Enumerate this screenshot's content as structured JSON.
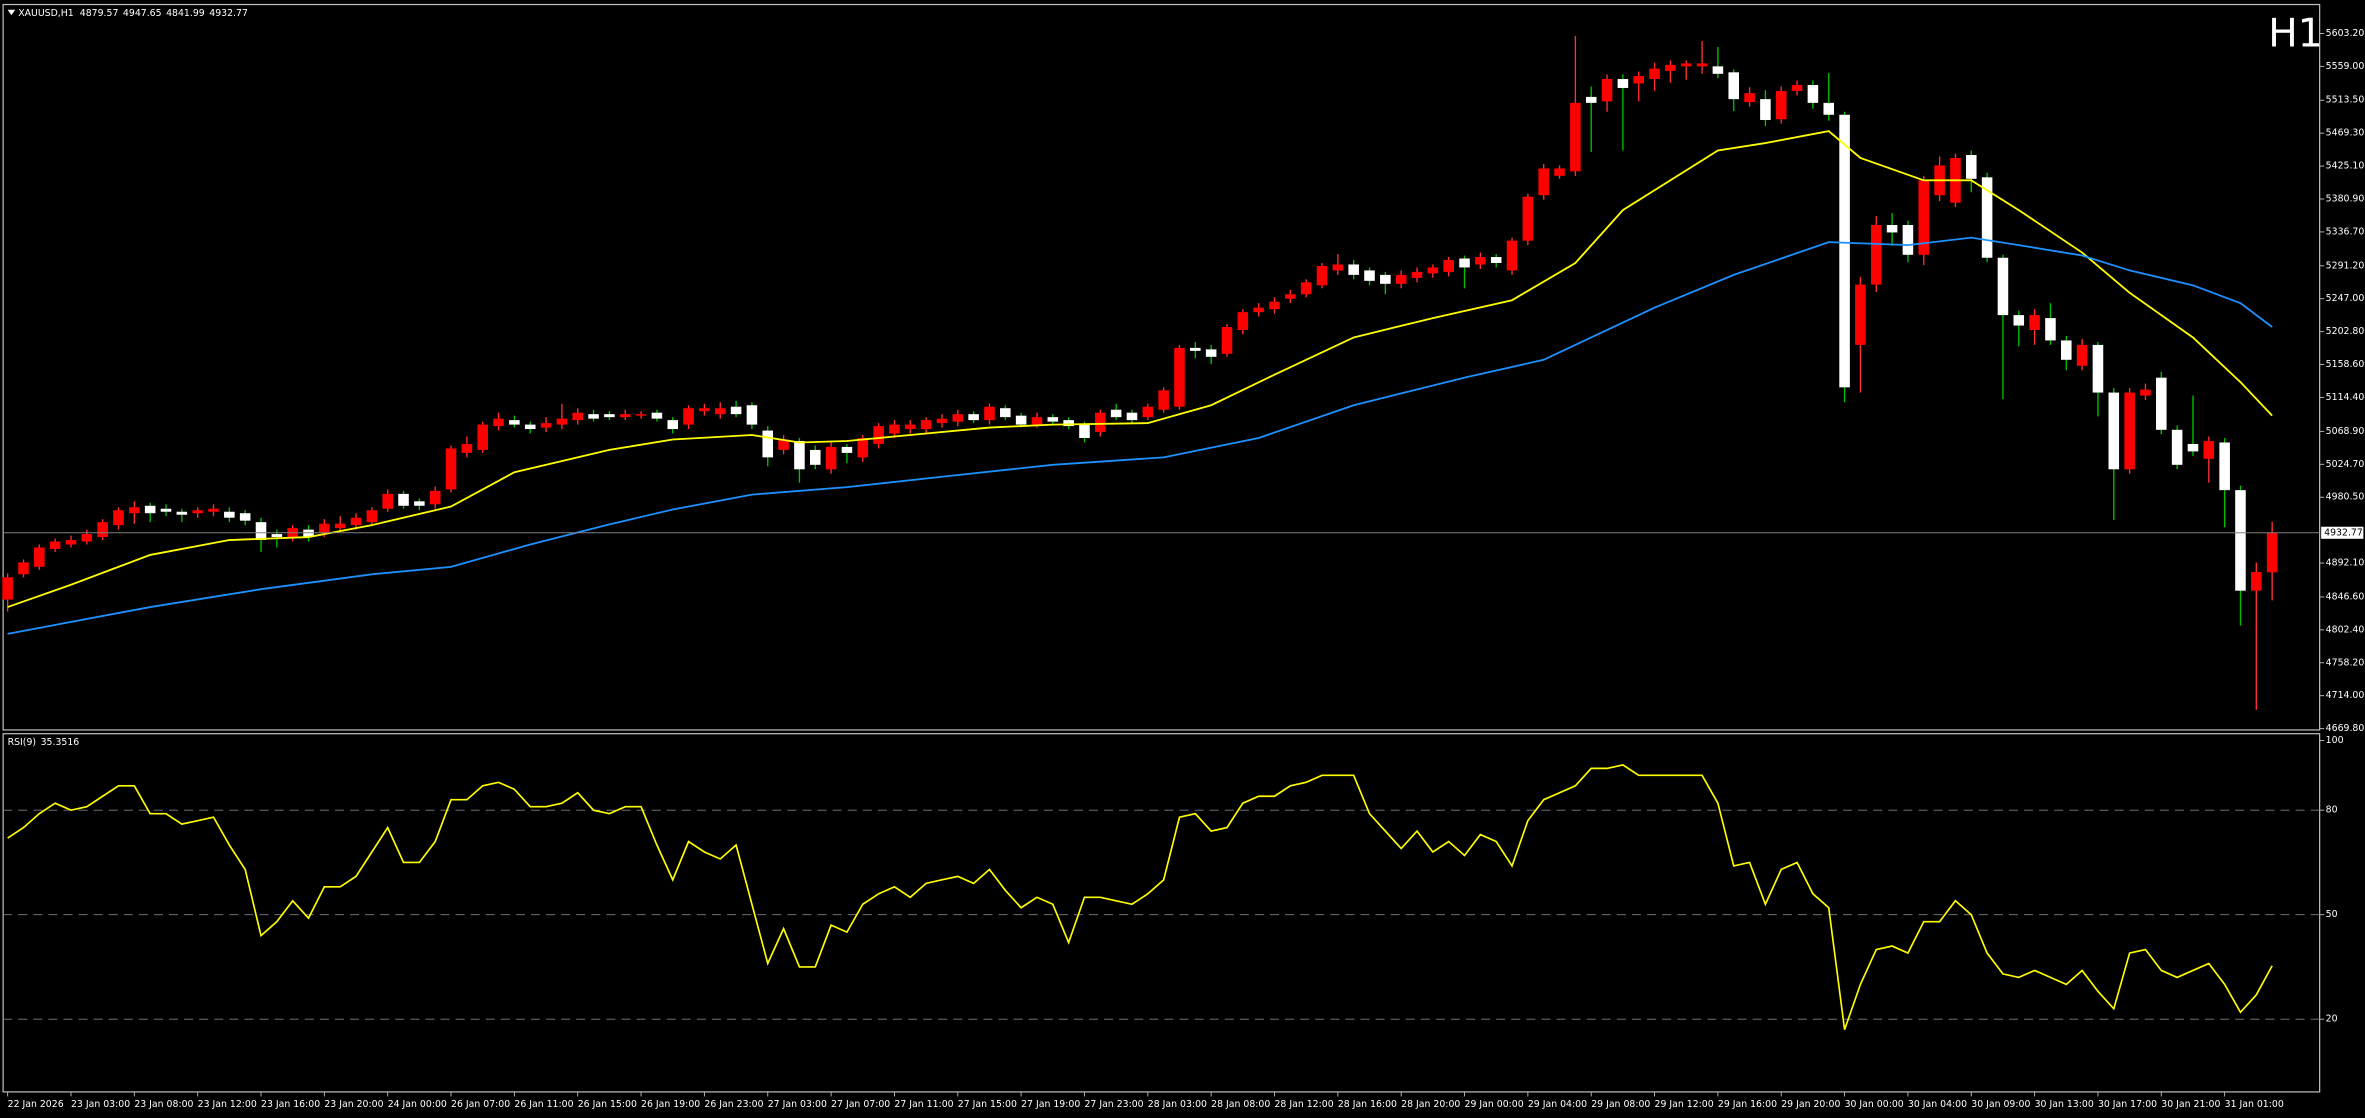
{
  "chart_data": [
    {
      "type": "candlestick",
      "title": "XAUUSD,H1",
      "timeframe": "H1",
      "timeframe_color": "#ff0000",
      "up_color": "#ff0000",
      "down_color": "#ffffff",
      "up_wick_color": "#ff3030",
      "down_wick_color": "#00c000",
      "price_line_color": "#808080",
      "open": [
        4843,
        4877,
        4887,
        4911,
        4917,
        4921,
        4927,
        4943,
        4959,
        4969,
        4965,
        4961,
        4959,
        4961,
        4961,
        4959,
        4947,
        4931,
        4927,
        4937,
        4933,
        4939,
        4943,
        4947,
        4965,
        4985,
        4975,
        4971,
        4991,
        5040,
        5044,
        5076,
        5084,
        5078,
        5074,
        5078,
        5084,
        5092,
        5092,
        5088,
        5090,
        5094,
        5084,
        5078,
        5096,
        5092,
        5102,
        5104,
        5070,
        5044,
        5056,
        5044,
        5018,
        5048,
        5034,
        5052,
        5066,
        5072,
        5072,
        5080,
        5082,
        5092,
        5084,
        5100,
        5090,
        5078,
        5088,
        5084,
        5078,
        5068,
        5098,
        5094,
        5088,
        5098,
        5102,
        5181,
        5179,
        5173,
        5205,
        5229,
        5233,
        5247,
        5253,
        5265,
        5285,
        5293,
        5285,
        5279,
        5267,
        5275,
        5281,
        5283,
        5301,
        5293,
        5303,
        5285,
        5325,
        5386,
        5412,
        5418,
        5518,
        5512,
        5542,
        5536,
        5542,
        5553,
        5559,
        5559,
        5559,
        5551,
        5511,
        5515,
        5488,
        5526,
        5534,
        5510,
        5494,
        5185,
        5266,
        5346,
        5346,
        5306,
        5386,
        5376,
        5440,
        5410,
        5302,
        5225,
        5205,
        5221,
        5191,
        5157,
        5185,
        5121,
        5018,
        5117,
        5141,
        5071,
        5052,
        5032,
        5054,
        4990,
        4855,
        4879.57
      ],
      "high": [
        4878,
        4897,
        4917,
        4925,
        4929,
        4937,
        4951,
        4967,
        4975,
        4973,
        4971,
        4965,
        4967,
        4971,
        4967,
        4963,
        4953,
        4937,
        4943,
        4943,
        4951,
        4955,
        4959,
        4967,
        4991,
        4989,
        4979,
        4995,
        5050,
        5062,
        5082,
        5094,
        5090,
        5082,
        5088,
        5106,
        5100,
        5098,
        5096,
        5098,
        5096,
        5098,
        5088,
        5104,
        5106,
        5108,
        5110,
        5108,
        5076,
        5064,
        5060,
        5050,
        5054,
        5052,
        5064,
        5080,
        5084,
        5084,
        5088,
        5092,
        5098,
        5096,
        5106,
        5104,
        5094,
        5094,
        5092,
        5088,
        5082,
        5098,
        5106,
        5098,
        5106,
        5128,
        5185,
        5189,
        5185,
        5213,
        5233,
        5241,
        5249,
        5259,
        5273,
        5295,
        5307,
        5299,
        5289,
        5283,
        5285,
        5289,
        5293,
        5303,
        5305,
        5309,
        5307,
        5329,
        5388,
        5428,
        5426,
        5600,
        5532,
        5548,
        5548,
        5552,
        5564,
        5567,
        5567,
        5593,
        5585,
        5555,
        5531,
        5527,
        5532,
        5540,
        5540,
        5550,
        5498,
        5276,
        5358,
        5362,
        5352,
        5412,
        5438,
        5442,
        5446,
        5416,
        5306,
        5231,
        5233,
        5241,
        5197,
        5193,
        5189,
        5127,
        5127,
        5133,
        5149,
        5077,
        5117,
        5062,
        5060,
        4996,
        4893,
        4947.65
      ],
      "low": [
        4827,
        4873,
        4883,
        4907,
        4913,
        4917,
        4923,
        4937,
        4945,
        4947,
        4955,
        4947,
        4953,
        4955,
        4947,
        4943,
        4907,
        4913,
        4921,
        4921,
        4927,
        4935,
        4937,
        4943,
        4961,
        4965,
        4963,
        4965,
        4987,
        5034,
        5040,
        5070,
        5074,
        5066,
        5068,
        5072,
        5078,
        5082,
        5084,
        5084,
        5086,
        5082,
        5066,
        5072,
        5090,
        5086,
        5088,
        5072,
        5022,
        5038,
        5000,
        5018,
        5012,
        5026,
        5028,
        5046,
        5060,
        5066,
        5066,
        5074,
        5076,
        5080,
        5078,
        5084,
        5074,
        5074,
        5078,
        5072,
        5054,
        5062,
        5084,
        5080,
        5084,
        5094,
        5098,
        5167,
        5159,
        5169,
        5199,
        5223,
        5227,
        5241,
        5249,
        5261,
        5279,
        5273,
        5265,
        5253,
        5261,
        5269,
        5275,
        5277,
        5261,
        5287,
        5289,
        5279,
        5319,
        5380,
        5408,
        5412,
        5444,
        5498,
        5446,
        5512,
        5526,
        5537,
        5541,
        5549,
        5543,
        5499,
        5505,
        5479,
        5482,
        5520,
        5502,
        5486,
        5108,
        5121,
        5256,
        5318,
        5296,
        5292,
        5378,
        5370,
        5390,
        5296,
        5112,
        5183,
        5185,
        5185,
        5151,
        5151,
        5089,
        4950,
        5012,
        5111,
        5065,
        5018,
        5036,
        5000,
        4940,
        4808,
        4695,
        4841.99
      ],
      "close": [
        4873,
        4893,
        4913,
        4921,
        4923,
        4931,
        4947,
        4963,
        4967,
        4959,
        4961,
        4957,
        4963,
        4965,
        4953,
        4949,
        4923,
        4927,
        4939,
        4927,
        4945,
        4945,
        4953,
        4963,
        4985,
        4969,
        4969,
        4989,
        5046,
        5052,
        5078,
        5086,
        5078,
        5072,
        5080,
        5086,
        5094,
        5086,
        5088,
        5092,
        5092,
        5086,
        5072,
        5100,
        5100,
        5100,
        5092,
        5078,
        5034,
        5058,
        5018,
        5024,
        5048,
        5040,
        5060,
        5076,
        5078,
        5078,
        5084,
        5086,
        5092,
        5084,
        5102,
        5088,
        5078,
        5088,
        5082,
        5076,
        5060,
        5094,
        5088,
        5084,
        5102,
        5124,
        5181,
        5177,
        5169,
        5209,
        5229,
        5235,
        5243,
        5253,
        5269,
        5291,
        5293,
        5279,
        5271,
        5267,
        5279,
        5283,
        5289,
        5299,
        5289,
        5303,
        5295,
        5325,
        5384,
        5422,
        5422,
        5510,
        5510,
        5542,
        5530,
        5546,
        5556,
        5561,
        5563,
        5563,
        5549,
        5515,
        5523,
        5487,
        5526,
        5534,
        5510,
        5494,
        5128,
        5266,
        5346,
        5336,
        5306,
        5406,
        5426,
        5436,
        5408,
        5302,
        5225,
        5211,
        5225,
        5191,
        5165,
        5185,
        5121,
        5018,
        5121,
        5125,
        5071,
        5024,
        5042,
        5056,
        4990,
        4855,
        4880,
        4932.77
      ],
      "series": [
        {
          "color": "#ffff00",
          "x": [
            0,
            4,
            9,
            14,
            19,
            23,
            28,
            32,
            38,
            42,
            47,
            50,
            53,
            57,
            62,
            66,
            72,
            76,
            80,
            85,
            90,
            95,
            99,
            102,
            108,
            111,
            115,
            117,
            121,
            124,
            127,
            131,
            134,
            138,
            141,
            143
          ],
          "values": [
            4833,
            4863,
            4903,
            4923,
            4927,
            4943,
            4968,
            5014,
            5044,
            5058,
            5064,
            5054,
            5056,
            5064,
            5074,
            5078,
            5080,
            5104,
            5145,
            5195,
            5221,
            5245,
            5295,
            5366,
            5446,
            5456,
            5472,
            5436,
            5406,
            5406,
            5366,
            5309,
            5255,
            5195,
            5135,
            5090
          ]
        },
        {
          "color": "#1e90ff",
          "x": [
            0,
            9,
            16,
            23,
            28,
            33,
            38,
            42,
            47,
            53,
            59,
            66,
            73,
            79,
            85,
            92,
            97,
            100,
            104,
            109,
            115,
            120,
            124,
            127,
            131,
            134,
            138,
            141,
            143
          ],
          "values": [
            4797,
            4833,
            4857,
            4877,
            4887,
            4917,
            4944,
            4964,
            4984,
            4994,
            5008,
            5024,
            5034,
            5060,
            5104,
            5141,
            5165,
            5195,
            5235,
            5279,
            5323,
            5319,
            5329,
            5319,
            5305,
            5285,
            5265,
            5241,
            5209
          ]
        }
      ],
      "ylim": [
        4668,
        5640
      ],
      "yticks": [
        {
          "value": 5603.2,
          "label": "5603.20"
        },
        {
          "value": 5559,
          "label": "5559.00"
        },
        {
          "value": 5513.5,
          "label": "5513.50"
        },
        {
          "value": 5469.3,
          "label": "5469.30"
        },
        {
          "value": 5425.1,
          "label": "5425.10"
        },
        {
          "value": 5380.9,
          "label": "5380.90"
        },
        {
          "value": 5336.7,
          "label": "5336.70"
        },
        {
          "value": 5291.2,
          "label": "5291.20"
        },
        {
          "value": 5247,
          "label": "5247.00"
        },
        {
          "value": 5202.8,
          "label": "5202.80"
        },
        {
          "value": 5158.6,
          "label": "5158.60"
        },
        {
          "value": 5114.4,
          "label": "5114.40"
        },
        {
          "value": 5068.9,
          "label": "5068.90"
        },
        {
          "value": 5024.7,
          "label": "5024.70"
        },
        {
          "value": 4980.5,
          "label": "4980.50"
        },
        {
          "value": 4892.1,
          "label": "4892.10"
        },
        {
          "value": 4846.6,
          "label": "4846.60"
        },
        {
          "value": 4802.4,
          "label": "4802.40"
        },
        {
          "value": 4758.2,
          "label": "4758.20"
        },
        {
          "value": 4714,
          "label": "4714.00"
        },
        {
          "value": 4669.8,
          "label": "4669.80"
        }
      ]
    },
    {
      "type": "line",
      "title": "RSI(9)",
      "color": "#ffff00",
      "level_color": "#808080",
      "values": [
        72,
        75,
        79,
        82,
        80,
        81,
        84,
        87,
        87,
        79,
        79,
        76,
        77,
        78,
        70,
        63,
        44,
        48,
        54,
        49,
        58,
        58,
        61,
        68,
        75,
        65,
        65,
        71,
        83,
        83,
        87,
        88,
        86,
        81,
        81,
        82,
        85,
        80,
        79,
        81,
        81,
        70,
        60,
        71,
        68,
        66,
        70,
        53,
        36,
        46,
        35,
        35,
        47,
        45,
        53,
        56,
        58,
        55,
        59,
        60,
        61,
        59,
        63,
        57,
        52,
        55,
        53,
        42,
        55,
        55,
        54,
        53,
        56,
        60,
        78,
        79,
        74,
        75,
        82,
        84,
        84,
        87,
        88,
        90,
        90,
        90,
        79,
        74,
        69,
        74,
        68,
        71,
        67,
        73,
        71,
        64,
        77,
        83,
        85,
        87,
        92,
        92,
        93,
        90,
        90,
        90,
        90,
        90,
        82,
        64,
        65,
        53,
        63,
        65,
        56,
        52,
        17,
        30,
        40,
        41,
        39,
        48,
        48,
        54,
        50,
        39,
        33,
        32,
        34,
        32,
        30,
        34,
        28,
        23,
        39,
        40,
        34,
        32,
        34,
        36,
        30,
        22,
        27,
        35.3516
      ],
      "ylim": [
        0,
        100
      ],
      "yticks": [
        100,
        80,
        50,
        20
      ],
      "xticks": [
        {
          "value": 0,
          "label": "22 Jan 2026"
        },
        {
          "value": 4,
          "label": "23 Jan 03:00"
        },
        {
          "value": 8,
          "label": "23 Jan 08:00"
        },
        {
          "value": 12,
          "label": "23 Jan 12:00"
        },
        {
          "value": 16,
          "label": "23 Jan 16:00"
        },
        {
          "value": 20,
          "label": "23 Jan 20:00"
        },
        {
          "value": 24,
          "label": "24 Jan 00:00"
        },
        {
          "value": 28,
          "label": "26 Jan 07:00"
        },
        {
          "value": 32,
          "label": "26 Jan 11:00"
        },
        {
          "value": 36,
          "label": "26 Jan 15:00"
        },
        {
          "value": 40,
          "label": "26 Jan 19:00"
        },
        {
          "value": 44,
          "label": "26 Jan 23:00"
        },
        {
          "value": 48,
          "label": "27 Jan 03:00"
        },
        {
          "value": 52,
          "label": "27 Jan 07:00"
        },
        {
          "value": 56,
          "label": "27 Jan 11:00"
        },
        {
          "value": 60,
          "label": "27 Jan 15:00"
        },
        {
          "value": 64,
          "label": "27 Jan 19:00"
        },
        {
          "value": 68,
          "label": "27 Jan 23:00"
        },
        {
          "value": 72,
          "label": "28 Jan 03:00"
        },
        {
          "value": 76,
          "label": "28 Jan 08:00"
        },
        {
          "value": 80,
          "label": "28 Jan 12:00"
        },
        {
          "value": 84,
          "label": "28 Jan 16:00"
        },
        {
          "value": 88,
          "label": "28 Jan 20:00"
        },
        {
          "value": 92,
          "label": "29 Jan 00:00"
        },
        {
          "value": 96,
          "label": "29 Jan 04:00"
        },
        {
          "value": 100,
          "label": "29 Jan 08:00"
        },
        {
          "value": 104,
          "label": "29 Jan 12:00"
        },
        {
          "value": 108,
          "label": "29 Jan 16:00"
        },
        {
          "value": 112,
          "label": "29 Jan 20:00"
        },
        {
          "value": 116,
          "label": "30 Jan 00:00"
        },
        {
          "value": 120,
          "label": "30 Jan 04:00"
        },
        {
          "value": 124,
          "label": "30 Jan 09:00"
        },
        {
          "value": 128,
          "label": "30 Jan 13:00"
        },
        {
          "value": 132,
          "label": "30 Jan 17:00"
        },
        {
          "value": 136,
          "label": "30 Jan 21:00"
        },
        {
          "value": 140,
          "label": "31 Jan 01:00"
        }
      ]
    }
  ]
}
